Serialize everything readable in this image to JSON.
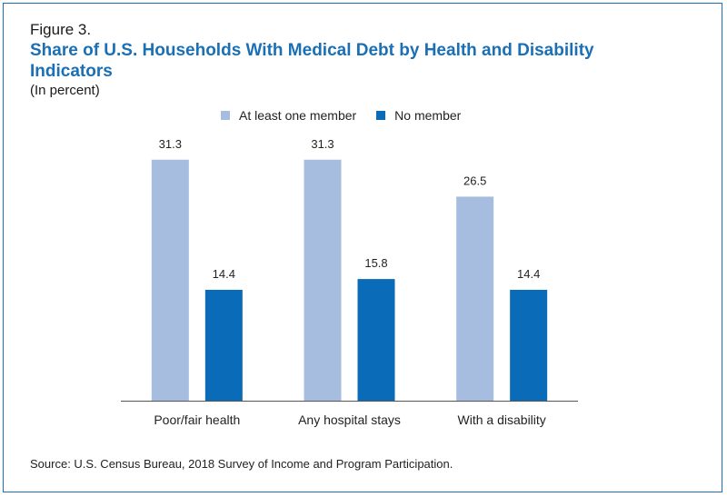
{
  "figure_label": "Figure 3.",
  "title": "Share of U.S. Households With Medical Debt by Health and Disability Indicators",
  "subtitle": "(In percent)",
  "source": "Source: U.S. Census Bureau, 2018 Survey of Income and Program Participation.",
  "colors": {
    "frame": "#1e6fb5",
    "title": "#1a6fb5",
    "series_light": "#a6bde0",
    "series_dark": "#0a6cb8"
  },
  "chart_data": {
    "type": "bar",
    "categories": [
      "Poor/fair health",
      "Any hospital stays",
      "With a disability"
    ],
    "series": [
      {
        "name": "At least one member",
        "color": "#a6bde0",
        "values": [
          31.3,
          31.3,
          26.5
        ]
      },
      {
        "name": "No member",
        "color": "#0a6cb8",
        "values": [
          14.4,
          15.8,
          14.4
        ]
      }
    ],
    "data_labels": true,
    "ylim": [
      0,
      36.7
    ],
    "grid": false,
    "legend_position": "top-center",
    "xlabel": "",
    "ylabel": ""
  }
}
